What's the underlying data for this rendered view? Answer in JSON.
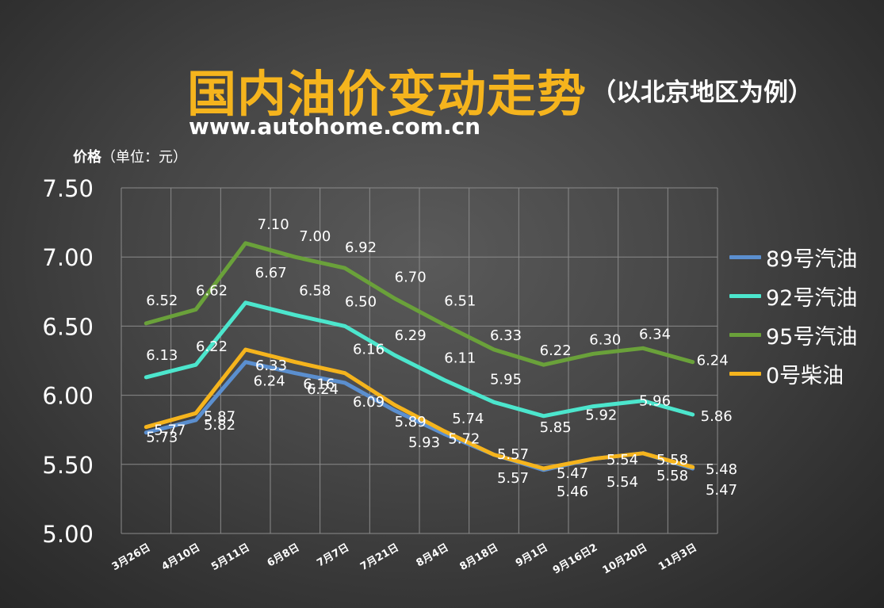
{
  "header": {
    "title": "国内油价变动走势",
    "subtitle": "（以北京地区为例）",
    "site": "www.autohome.com.cn",
    "unit_label_strong": "价格",
    "unit_label_rest": "（单位：元）"
  },
  "chart_data": {
    "type": "line",
    "ylim": [
      5.0,
      7.5
    ],
    "y_ticks": [
      "5.00",
      "5.50",
      "6.00",
      "6.50",
      "7.00",
      "7.50"
    ],
    "categories": [
      "3月26日",
      "4月10日",
      "5月11日",
      "6月8日",
      "7月7日",
      "7月21日",
      "8月4日",
      "8月18日",
      "9月1日",
      "9月16日2",
      "10月20日",
      "11月3日"
    ],
    "series": [
      {
        "name": "89号汽油",
        "color": "#5b8fcf",
        "values": [
          5.73,
          5.82,
          6.24,
          6.16,
          6.09,
          5.89,
          5.72,
          5.57,
          5.46,
          5.54,
          5.58,
          5.47
        ]
      },
      {
        "name": "92号汽油",
        "color": "#4ce6cd",
        "values": [
          6.13,
          6.22,
          6.67,
          6.58,
          6.5,
          6.29,
          6.11,
          5.95,
          5.85,
          5.92,
          5.96,
          5.86
        ]
      },
      {
        "name": "95号汽油",
        "color": "#6aa13a",
        "values": [
          6.52,
          6.62,
          7.1,
          7.0,
          6.92,
          6.7,
          6.51,
          6.33,
          6.22,
          6.3,
          6.34,
          6.24
        ]
      },
      {
        "name": "0号柴油",
        "color": "#f5b41d",
        "values": [
          5.77,
          5.87,
          6.33,
          6.24,
          6.16,
          5.93,
          5.74,
          5.57,
          5.47,
          5.54,
          5.58,
          5.48
        ]
      }
    ],
    "data_labels": {
      "89号汽油": [
        "5.73",
        "5.82",
        "6.24",
        "6.16",
        "6.09",
        "5.89",
        "5.72",
        "5.57",
        "5.46",
        "5.54",
        "5.58",
        "5.47"
      ],
      "92号汽油": [
        "6.13",
        "6.22",
        "6.67",
        "6.58",
        "6.50",
        "6.29",
        "6.11",
        "5.95",
        "5.85",
        "5.92",
        "5.96",
        "5.86"
      ],
      "95号汽油": [
        "6.52",
        "6.62",
        "7.10",
        "7.00",
        "6.92",
        "6.70",
        "6.51",
        "6.33",
        "6.22",
        "6.30",
        "6.34",
        "6.24"
      ],
      "0号柴油": [
        "5.77",
        "5.87",
        "6.33",
        "6.24",
        "6.16",
        "5.93",
        "5.74",
        "5.57",
        "5.47",
        "5.54",
        "5.58",
        "5.48"
      ]
    },
    "grid": true,
    "legend_position": "right"
  }
}
